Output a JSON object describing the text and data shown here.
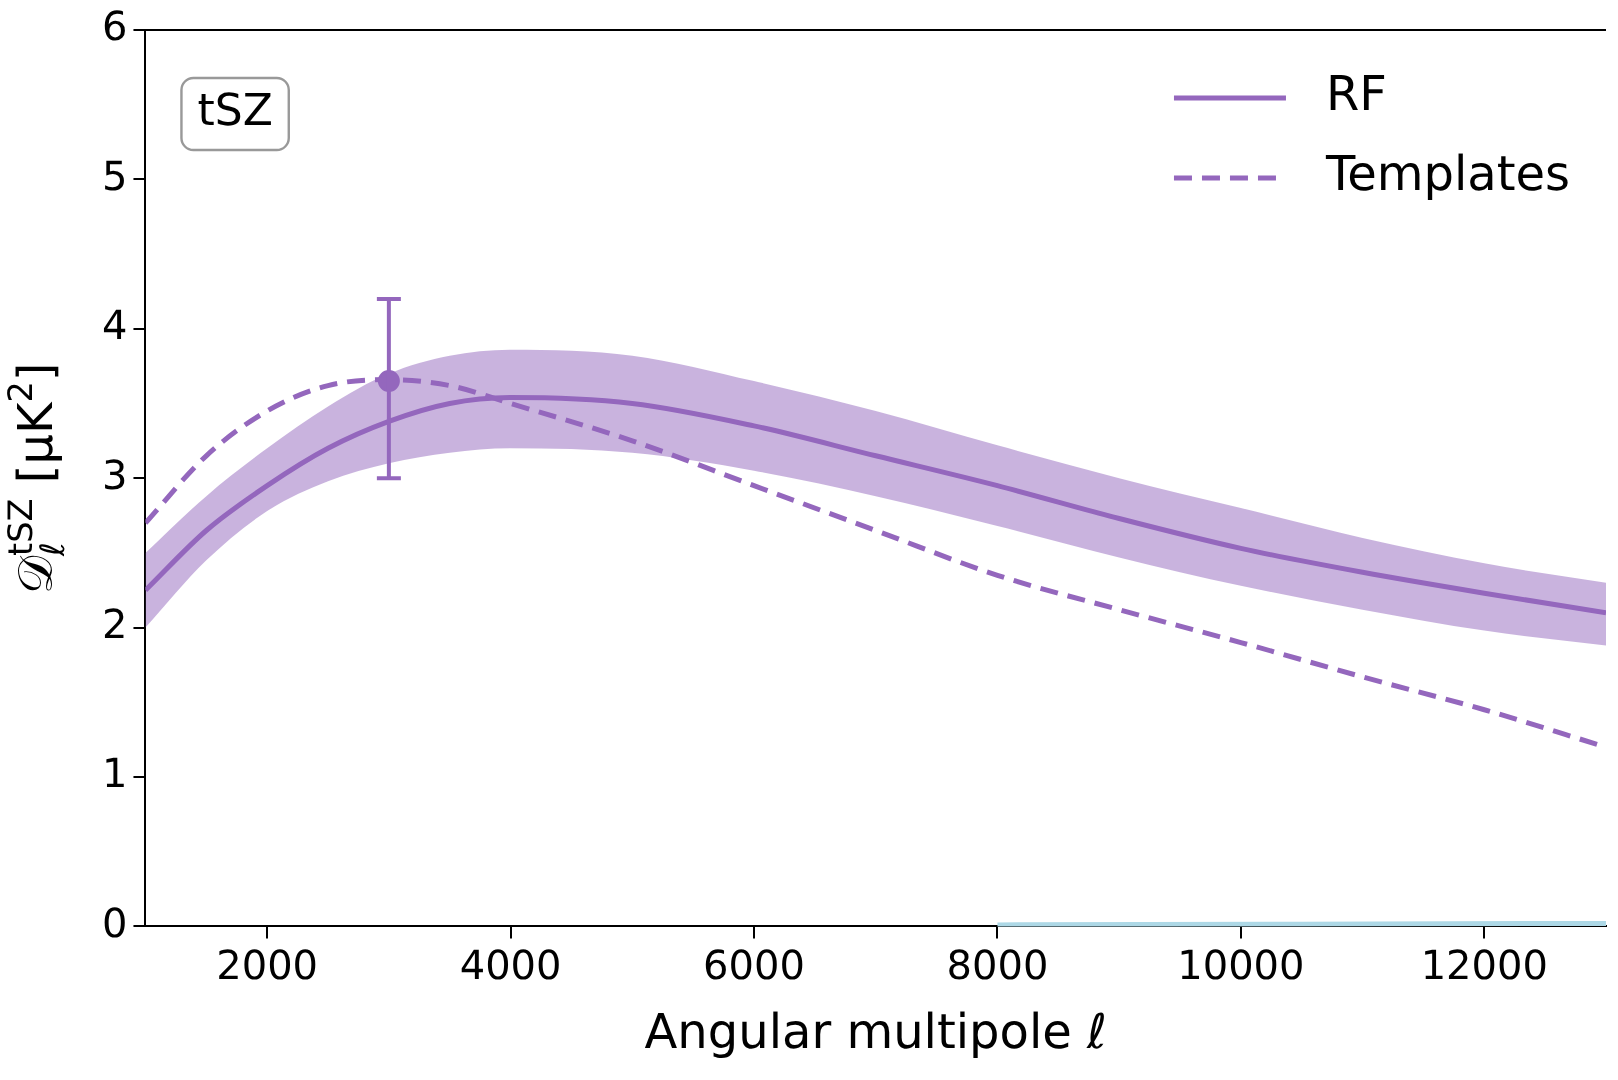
{
  "chart_data": {
    "type": "line",
    "xlabel": "Angular multipole ℓ",
    "ylabel": "𝒟$_{ℓ}$$^{tSZ}$ [μK$^{2}$]",
    "annotations": [
      "tSZ"
    ],
    "x": [
      1000,
      1500,
      2000,
      2500,
      3000,
      3500,
      4000,
      5000,
      6000,
      7000,
      8000,
      9000,
      10000,
      11000,
      12000,
      13000
    ],
    "xlim": [
      1000,
      13000
    ],
    "xticks": [
      2000,
      4000,
      6000,
      8000,
      10000,
      12000
    ],
    "ylim": [
      0,
      6
    ],
    "yticks": [
      0,
      1,
      2,
      3,
      4,
      5,
      6
    ],
    "grid": false,
    "legend": "top right",
    "marker": "none",
    "series": [
      {
        "name": "RF",
        "color": "#9467bd",
        "line_style": "solid",
        "values": [
          2.25,
          2.65,
          2.95,
          3.2,
          3.38,
          3.5,
          3.54,
          3.5,
          3.35,
          3.15,
          2.95,
          2.73,
          2.53,
          2.37,
          2.23,
          2.1
        ],
        "lower": [
          2.0,
          2.45,
          2.78,
          2.98,
          3.1,
          3.17,
          3.2,
          3.17,
          3.05,
          2.88,
          2.68,
          2.47,
          2.28,
          2.12,
          1.98,
          1.88
        ],
        "upper": [
          2.5,
          2.88,
          3.2,
          3.48,
          3.7,
          3.82,
          3.86,
          3.82,
          3.65,
          3.45,
          3.22,
          3.0,
          2.8,
          2.6,
          2.43,
          2.3
        ]
      },
      {
        "name": "Templates",
        "color": "#9467bd",
        "line_style": "dashed",
        "values": [
          2.7,
          3.15,
          3.45,
          3.62,
          3.66,
          3.62,
          3.5,
          3.25,
          2.95,
          2.65,
          2.35,
          2.12,
          1.9,
          1.67,
          1.45,
          1.2
        ]
      },
      {
        "type": "scatter",
        "color": "#9467bd",
        "marker": "circle",
        "x": [
          3000
        ],
        "values": [
          3.65
        ],
        "errors": [
          [
            3.0,
            4.2
          ]
        ]
      },
      {
        "type": "line",
        "color": "#add8e6",
        "line_style": "solid",
        "x": [
          8000,
          13000
        ],
        "values": [
          0.01,
          0.02
        ]
      }
    ]
  }
}
